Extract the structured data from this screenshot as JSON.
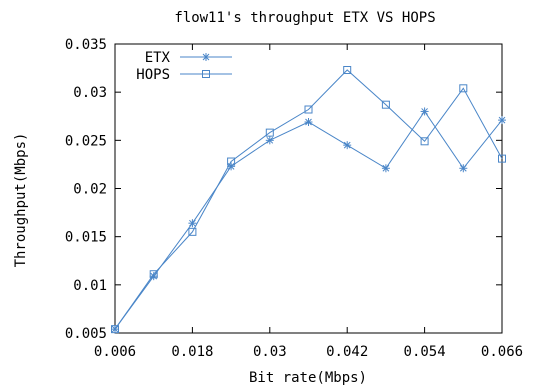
{
  "chart_data": {
    "type": "line",
    "title": "flow11's throughput ETX VS HOPS",
    "xlabel": "Bit rate(Mbps)",
    "ylabel": "Throughput(Mbps)",
    "xlim": [
      0.006,
      0.066
    ],
    "ylim": [
      0.005,
      0.035
    ],
    "xticks": [
      "0.006",
      "0.018",
      "0.03",
      "0.042",
      "0.054",
      "0.066"
    ],
    "xtick_values": [
      0.006,
      0.018,
      0.03,
      0.042,
      0.054,
      0.066
    ],
    "yticks": [
      "0.005",
      "0.01",
      "0.015",
      "0.02",
      "0.025",
      "0.03",
      "0.035"
    ],
    "ytick_values": [
      0.005,
      0.01,
      0.015,
      0.02,
      0.025,
      0.03,
      0.035
    ],
    "grid": false,
    "legend_position": "top-left",
    "x": [
      0.006,
      0.012,
      0.018,
      0.024,
      0.03,
      0.036,
      0.042,
      0.048,
      0.054,
      0.06,
      0.066
    ],
    "series": [
      {
        "name": "ETX",
        "marker": "star",
        "color": "#4a86c8",
        "values": [
          0.0054,
          0.0109,
          0.0164,
          0.0223,
          0.025,
          0.0269,
          0.0245,
          0.0221,
          0.028,
          0.0221,
          0.0271
        ]
      },
      {
        "name": "HOPS",
        "marker": "square",
        "color": "#4a86c8",
        "values": [
          0.0054,
          0.0111,
          0.0155,
          0.0228,
          0.0258,
          0.0282,
          0.0323,
          0.0287,
          0.0249,
          0.0304,
          0.0231
        ]
      }
    ]
  }
}
